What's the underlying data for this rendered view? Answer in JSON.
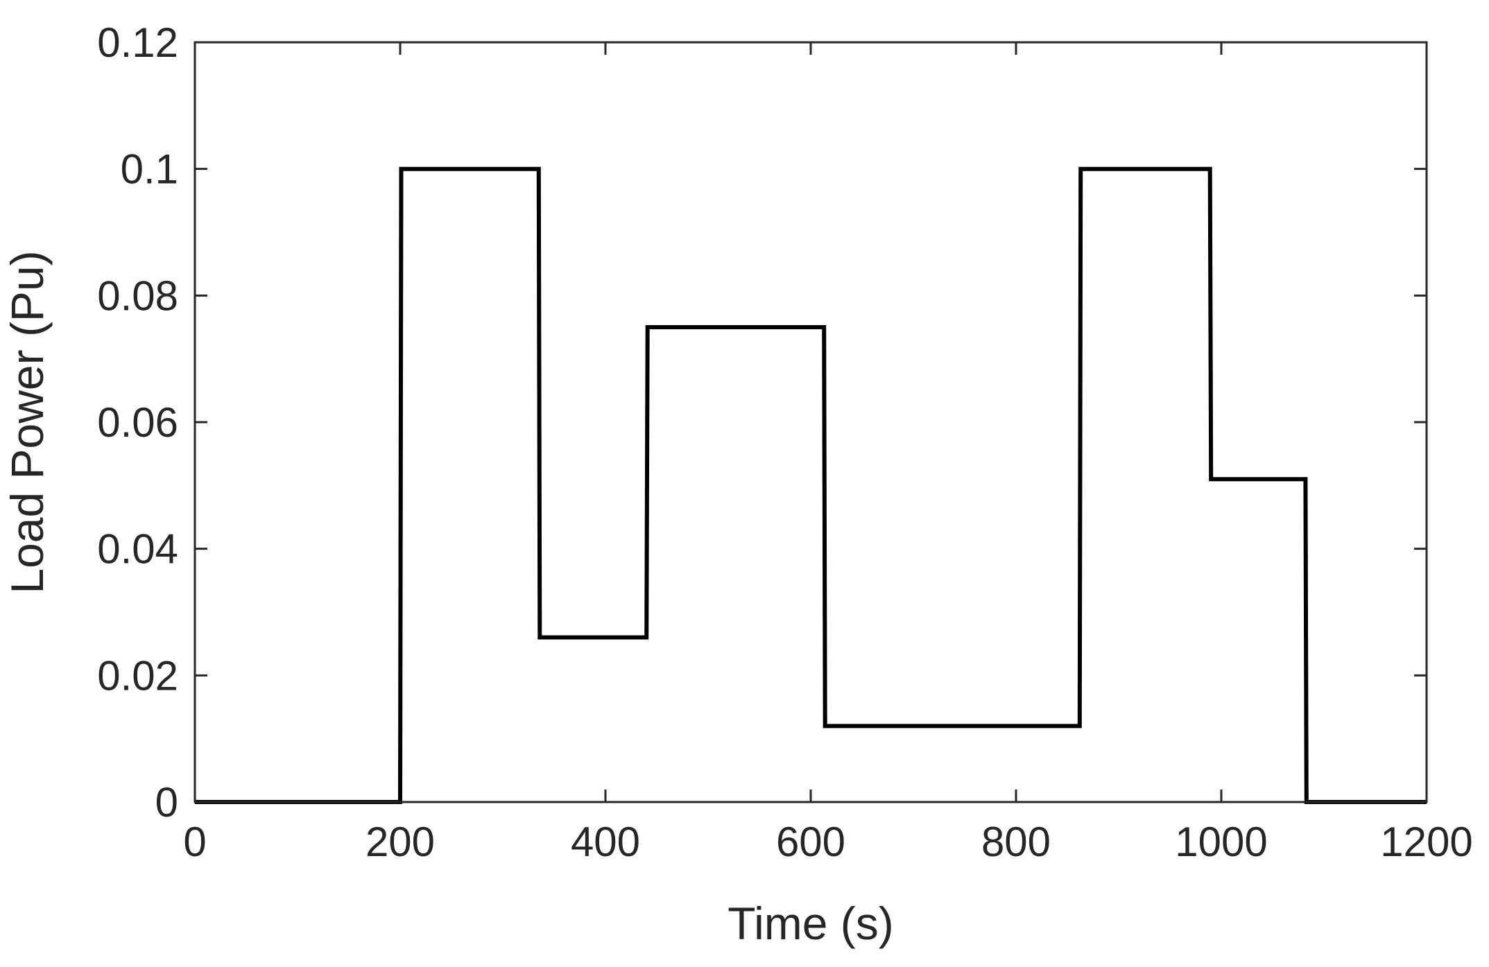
{
  "chart_data": {
    "type": "line",
    "title": "",
    "xlabel": "Time (s)",
    "ylabel": "Load Power (Pu)",
    "xlim": [
      0,
      1200
    ],
    "ylim": [
      0,
      0.12
    ],
    "grid": false,
    "box": true,
    "x_ticks": [
      0,
      200,
      400,
      600,
      800,
      1000,
      1200
    ],
    "x_tick_labels": [
      "0",
      "200",
      "400",
      "600",
      "800",
      "1000",
      "1200"
    ],
    "y_ticks": [
      0,
      0.02,
      0.04,
      0.06,
      0.08,
      0.1,
      0.12
    ],
    "y_tick_labels": [
      "0",
      "0.02",
      "0.04",
      "0.06",
      "0.08",
      "0.1",
      "0.12"
    ],
    "series": [
      {
        "color": "#000000",
        "x": [
          0,
          200,
          201,
          335,
          336,
          440,
          441,
          613,
          614,
          862,
          863,
          989,
          990,
          1082,
          1083,
          1200
        ],
        "y": [
          0,
          0,
          0.1,
          0.1,
          0.026,
          0.026,
          0.075,
          0.075,
          0.012,
          0.012,
          0.1,
          0.1,
          0.051,
          0.051,
          0,
          0
        ]
      }
    ]
  }
}
